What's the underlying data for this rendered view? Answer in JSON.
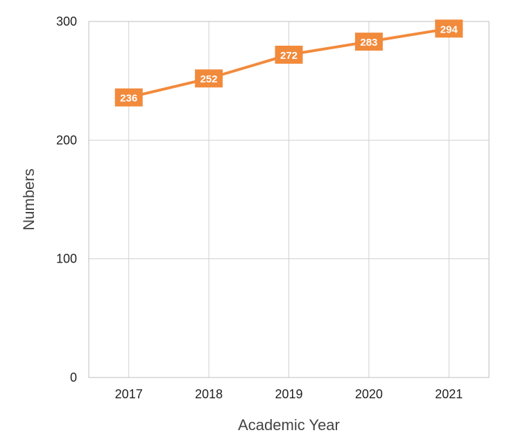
{
  "chart_data": {
    "type": "line",
    "title": "",
    "xlabel": "Academic Year",
    "ylabel": "Numbers",
    "categories": [
      "2017",
      "2018",
      "2019",
      "2020",
      "2021"
    ],
    "series": [
      {
        "values": [
          236,
          252,
          272,
          283,
          294
        ],
        "color": "#f28a3c"
      }
    ],
    "ylim": [
      0,
      300
    ],
    "yticks": [
      "0",
      "100",
      "200",
      "300"
    ],
    "grid": true,
    "legend": "none",
    "data_labels": [
      "236",
      "252",
      "272",
      "283",
      "294"
    ]
  }
}
